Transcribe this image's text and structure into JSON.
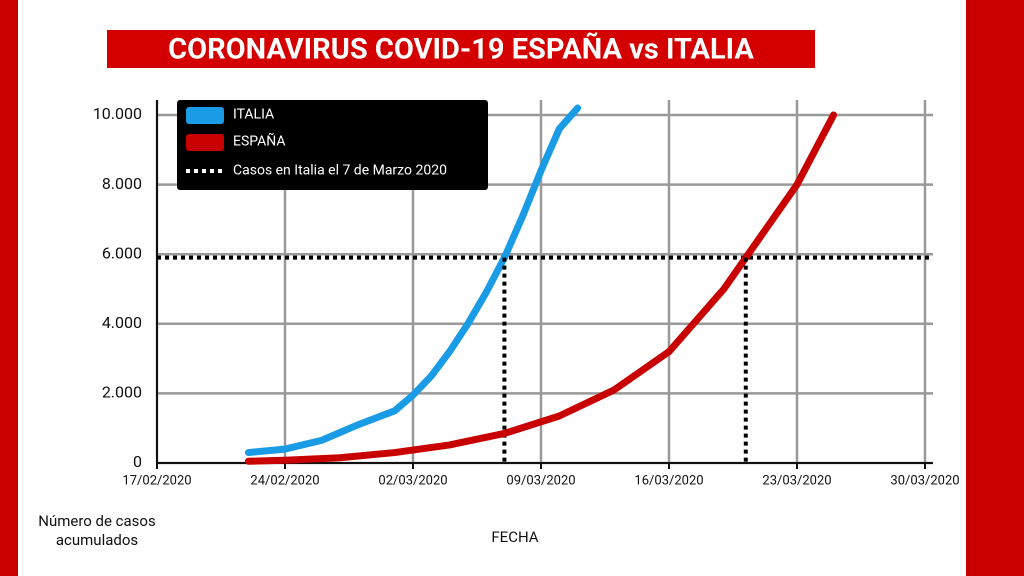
{
  "chart_data": {
    "type": "line",
    "title": "CORONAVIRUS COVID-19  ESPAÑA vs ITALIA",
    "x_label": "FECHA",
    "y_label": "Número de casos acumulados",
    "series": [
      {
        "name": "ITALIA",
        "color": "#1a9be6",
        "x": [
          "22/02/2020",
          "24/02/2020",
          "26/02/2020",
          "28/02/2020",
          "01/03/2020",
          "02/03/2020",
          "03/03/2020",
          "04/03/2020",
          "05/03/2020",
          "06/03/2020",
          "07/03/2020",
          "08/03/2020",
          "09/03/2020",
          "10/03/2020",
          "11/03/2020"
        ],
        "values": [
          300,
          400,
          650,
          1100,
          1500,
          1950,
          2500,
          3200,
          4000,
          4900,
          5900,
          7100,
          8400,
          9600,
          10200
        ]
      },
      {
        "name": "ESPAÑA",
        "color": "#c80000",
        "x": [
          "22/02/2020",
          "24/02/2020",
          "27/02/2020",
          "01/03/2020",
          "04/03/2020",
          "07/03/2020",
          "10/03/2020",
          "13/03/2020",
          "16/03/2020",
          "19/03/2020",
          "21/03/2020",
          "23/03/2020",
          "25/03/2020"
        ],
        "values": [
          50,
          80,
          150,
          300,
          520,
          850,
          1350,
          2100,
          3200,
          5000,
          6500,
          8000,
          10000
        ]
      }
    ],
    "reference": {
      "name": "Casos en Italia el 7 de Marzo 2020",
      "value": 5900,
      "color": "#000"
    },
    "xlim": [
      "17/02/2020",
      "30/03/2020"
    ],
    "xticks": [
      "17/02/2020",
      "24/02/2020",
      "02/03/2020",
      "09/03/2020",
      "16/03/2020",
      "23/03/2020",
      "30/03/2020"
    ],
    "ylim": [
      0,
      10000
    ],
    "yticks": [
      0,
      {
        "value": 2000,
        "label": "2.000"
      },
      {
        "value": 4000,
        "label": "4.000"
      },
      {
        "value": 6000,
        "label": "6.000"
      },
      {
        "value": 8000,
        "label": "8.000"
      },
      {
        "value": 10000,
        "label": "10.000"
      }
    ],
    "grid": true,
    "legend": "upper left"
  }
}
